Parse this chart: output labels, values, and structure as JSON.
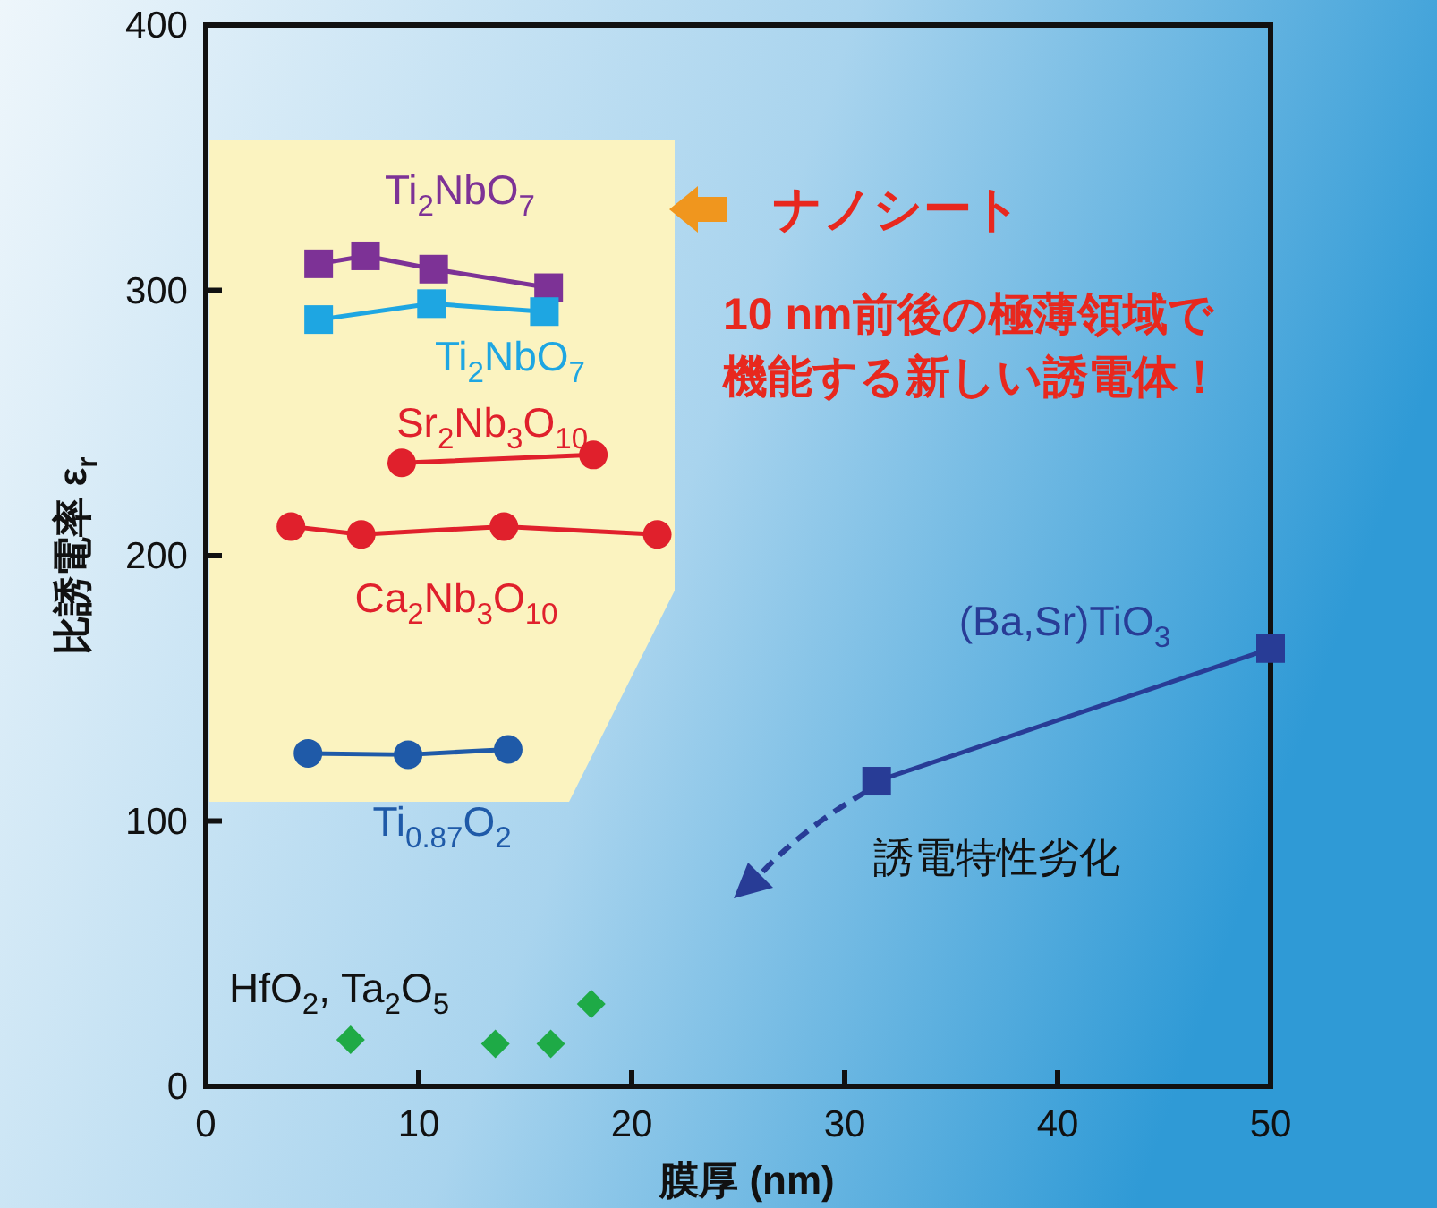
{
  "chart_data": {
    "type": "line",
    "xlabel": "膜厚 (nm)",
    "ylabel": "比誘電率 ε$_{r}$",
    "xlim": [
      0,
      50
    ],
    "xticks": [
      0,
      10,
      20,
      30,
      40,
      50
    ],
    "ylim": [
      0,
      400
    ],
    "yticks": [
      0,
      100,
      200,
      300,
      400
    ],
    "grid": false,
    "series": [
      {
        "name": "Ti$_{2}$NbO$_{7}$",
        "color": "#7d3296",
        "marker": "square",
        "x": [
          5.3,
          7.5,
          10.7,
          16.1
        ],
        "values": [
          310,
          313,
          308,
          301
        ]
      },
      {
        "name": "Ti$_{2}$NbO$_{7}$",
        "color": "#1ea6e2",
        "marker": "square",
        "x": [
          5.3,
          10.6,
          15.9
        ],
        "values": [
          289,
          295,
          292
        ]
      },
      {
        "name": "Sr$_{2}$Nb$_{3}$O$_{10}$",
        "color": "#e0202c",
        "marker": "circle",
        "x": [
          9.2,
          18.2
        ],
        "values": [
          235,
          238
        ]
      },
      {
        "name": "Ca$_{2}$Nb$_{3}$O$_{10}$",
        "color": "#e0202c",
        "marker": "circle",
        "x": [
          4.0,
          7.3,
          14.0,
          21.2
        ],
        "values": [
          211,
          208,
          211,
          208
        ]
      },
      {
        "name": "Ti$_{0.87}$O$_{2}$",
        "color": "#1f5aa8",
        "marker": "circle",
        "x": [
          4.8,
          9.5,
          14.2
        ],
        "values": [
          125.5,
          125,
          127
        ]
      },
      {
        "name": "(Ba,Sr)TiO$_{3}$",
        "color": "#283c96",
        "marker": "square",
        "x": [
          31.5,
          50
        ],
        "values": [
          115,
          165
        ]
      },
      {
        "name": "HfO$_{2}$, Ta$_{2}$O$_{5}$",
        "type": "scatter",
        "color": "#1eaa46",
        "marker": "diamond",
        "x": [
          6.8,
          13.6,
          16.2,
          18.1
        ],
        "values": [
          17.5,
          16,
          16,
          31
        ]
      }
    ],
    "annotations": [
      "ナノシート",
      "10 nm前後の極薄領域で",
      "機能する新しい誘電体！",
      "誘電特性劣化"
    ]
  }
}
